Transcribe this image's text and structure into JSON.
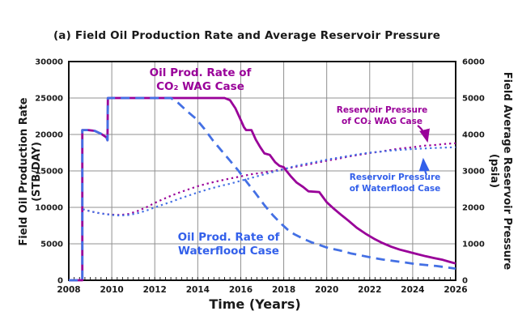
{
  "title": "(a) Field Oil Production Rate and Average Reservoir Pressure",
  "colors": {
    "wag": "#990099",
    "waterflood": "#4470E4",
    "waterflood_text": "#3360EA",
    "grid": "#909090",
    "frame": "#111111",
    "text": "#1a1a1a"
  },
  "axes": {
    "x": {
      "label": "Time (Years)",
      "min": 2008,
      "max": 2026,
      "major_ticks": [
        2008,
        2010,
        2012,
        2014,
        2016,
        2018,
        2020,
        2022,
        2024,
        2026
      ],
      "minor_step": 0.25
    },
    "y_left": {
      "label_line1": "Field Oil Production Rate",
      "label_line2": "(STB/DAY)",
      "min": 0,
      "max": 30000,
      "ticks": [
        0,
        5000,
        10000,
        15000,
        20000,
        25000,
        30000
      ]
    },
    "y_right": {
      "label_line1": "Field Average Reservoir Pressure",
      "label_line2": "(psia)",
      "min": 0,
      "max": 6000,
      "ticks": [
        0,
        1000,
        2000,
        3000,
        4000,
        5000,
        6000
      ]
    }
  },
  "annotations": {
    "prod_wag": {
      "line1": "Oil Prod. Rate of",
      "line2": "CO₂ WAG Case"
    },
    "prod_wf": {
      "line1": "Oil Prod. Rate of",
      "line2": "Waterflood Case"
    },
    "pres_wag": {
      "line1": "Reservoir Pressure",
      "line2": "of CO₂ WAG Case"
    },
    "pres_wf": {
      "line1": "Reservoir Pressure",
      "line2": "of Waterflood Case"
    }
  },
  "chart_data": {
    "type": "line",
    "title": "(a) Field Oil Production Rate and Average Reservoir Pressure",
    "xlabel": "Time (Years)",
    "ylabel_left": "Field Oil Production Rate (STB/DAY)",
    "ylabel_right": "Field Average Reservoir Pressure (psia)",
    "xlim": [
      2008,
      2026
    ],
    "ylim_left": [
      0,
      30000
    ],
    "ylim_right": [
      0,
      6000
    ],
    "grid": true,
    "series": [
      {
        "name": "Oil Prod. Rate of CO₂ WAG Case",
        "axis": "left",
        "style": "solid",
        "color": "#990099",
        "points": [
          [
            2008.0,
            0
          ],
          [
            2008.63,
            0
          ],
          [
            2008.63,
            20600
          ],
          [
            2008.9,
            20600
          ],
          [
            2009.2,
            20500
          ],
          [
            2009.5,
            20100
          ],
          [
            2009.75,
            19600
          ],
          [
            2009.8,
            19200
          ],
          [
            2009.82,
            25000
          ],
          [
            2015.25,
            25000
          ],
          [
            2015.5,
            24700
          ],
          [
            2015.75,
            23600
          ],
          [
            2016.0,
            22000
          ],
          [
            2016.15,
            21000
          ],
          [
            2016.25,
            20600
          ],
          [
            2016.5,
            20600
          ],
          [
            2016.7,
            19300
          ],
          [
            2016.9,
            18300
          ],
          [
            2017.1,
            17400
          ],
          [
            2017.35,
            17200
          ],
          [
            2017.6,
            16200
          ],
          [
            2017.8,
            15700
          ],
          [
            2018.0,
            15500
          ],
          [
            2018.1,
            15100
          ],
          [
            2018.35,
            14200
          ],
          [
            2018.6,
            13400
          ],
          [
            2018.9,
            12800
          ],
          [
            2019.15,
            12200
          ],
          [
            2019.65,
            12100
          ],
          [
            2019.8,
            11500
          ],
          [
            2020.0,
            10700
          ],
          [
            2020.3,
            9900
          ],
          [
            2020.7,
            8900
          ],
          [
            2021.0,
            8200
          ],
          [
            2021.4,
            7200
          ],
          [
            2021.8,
            6400
          ],
          [
            2022.2,
            5700
          ],
          [
            2022.6,
            5100
          ],
          [
            2023.0,
            4600
          ],
          [
            2023.4,
            4200
          ],
          [
            2023.8,
            3900
          ],
          [
            2024.2,
            3600
          ],
          [
            2024.6,
            3300
          ],
          [
            2025.0,
            3050
          ],
          [
            2025.4,
            2800
          ],
          [
            2025.7,
            2550
          ],
          [
            2026.0,
            2300
          ]
        ]
      },
      {
        "name": "Oil Prod. Rate of Waterflood Case",
        "axis": "left",
        "style": "dashed",
        "color": "#4470E4",
        "points": [
          [
            2008.0,
            0
          ],
          [
            2008.63,
            0
          ],
          [
            2008.63,
            20600
          ],
          [
            2008.9,
            20600
          ],
          [
            2009.2,
            20500
          ],
          [
            2009.5,
            20100
          ],
          [
            2009.75,
            19600
          ],
          [
            2009.8,
            19200
          ],
          [
            2009.82,
            25000
          ],
          [
            2012.75,
            25000
          ],
          [
            2013.1,
            24300
          ],
          [
            2013.5,
            23200
          ],
          [
            2013.9,
            22200
          ],
          [
            2014.3,
            20800
          ],
          [
            2014.7,
            19200
          ],
          [
            2015.1,
            17800
          ],
          [
            2015.5,
            16400
          ],
          [
            2015.9,
            15000
          ],
          [
            2016.3,
            13400
          ],
          [
            2016.7,
            11900
          ],
          [
            2017.1,
            10300
          ],
          [
            2017.5,
            8900
          ],
          [
            2017.9,
            7700
          ],
          [
            2018.2,
            6900
          ],
          [
            2018.5,
            6300
          ],
          [
            2018.9,
            5700
          ],
          [
            2019.3,
            5200
          ],
          [
            2019.7,
            4800
          ],
          [
            2020.1,
            4400
          ],
          [
            2020.6,
            4100
          ],
          [
            2021.1,
            3700
          ],
          [
            2021.6,
            3400
          ],
          [
            2022.1,
            3100
          ],
          [
            2022.6,
            2850
          ],
          [
            2023.1,
            2650
          ],
          [
            2023.6,
            2450
          ],
          [
            2024.1,
            2250
          ],
          [
            2024.6,
            2100
          ],
          [
            2025.1,
            1950
          ],
          [
            2025.5,
            1800
          ],
          [
            2026.0,
            1600
          ]
        ]
      },
      {
        "name": "Reservoir Pressure of CO₂ WAG Case",
        "axis": "right",
        "style": "dotted",
        "color": "#990099",
        "points": [
          [
            2008.65,
            1950
          ],
          [
            2009.0,
            1890
          ],
          [
            2009.5,
            1830
          ],
          [
            2010.0,
            1800
          ],
          [
            2010.4,
            1790
          ],
          [
            2010.8,
            1820
          ],
          [
            2011.2,
            1900
          ],
          [
            2011.6,
            2000
          ],
          [
            2012.0,
            2120
          ],
          [
            2012.4,
            2230
          ],
          [
            2012.8,
            2330
          ],
          [
            2013.2,
            2420
          ],
          [
            2013.6,
            2500
          ],
          [
            2014.0,
            2580
          ],
          [
            2014.5,
            2660
          ],
          [
            2015.0,
            2730
          ],
          [
            2015.5,
            2790
          ],
          [
            2016.0,
            2850
          ],
          [
            2016.5,
            2910
          ],
          [
            2017.0,
            2950
          ],
          [
            2017.5,
            3000
          ],
          [
            2018.0,
            3050
          ],
          [
            2018.5,
            3110
          ],
          [
            2019.0,
            3160
          ],
          [
            2019.5,
            3220
          ],
          [
            2020.0,
            3280
          ],
          [
            2020.5,
            3330
          ],
          [
            2021.0,
            3390
          ],
          [
            2021.5,
            3440
          ],
          [
            2022.0,
            3490
          ],
          [
            2022.5,
            3530
          ],
          [
            2023.0,
            3580
          ],
          [
            2023.5,
            3620
          ],
          [
            2024.0,
            3650
          ],
          [
            2024.5,
            3690
          ],
          [
            2025.0,
            3710
          ],
          [
            2025.5,
            3740
          ],
          [
            2026.0,
            3760
          ]
        ]
      },
      {
        "name": "Reservoir Pressure of Waterflood Case",
        "axis": "right",
        "style": "dotted",
        "color": "#4470E4",
        "points": [
          [
            2008.65,
            1950
          ],
          [
            2009.0,
            1890
          ],
          [
            2009.5,
            1830
          ],
          [
            2010.0,
            1790
          ],
          [
            2010.4,
            1775
          ],
          [
            2010.8,
            1790
          ],
          [
            2011.2,
            1840
          ],
          [
            2011.6,
            1910
          ],
          [
            2012.0,
            2000
          ],
          [
            2012.4,
            2080
          ],
          [
            2012.8,
            2160
          ],
          [
            2013.2,
            2250
          ],
          [
            2013.6,
            2330
          ],
          [
            2014.0,
            2410
          ],
          [
            2014.5,
            2500
          ],
          [
            2015.0,
            2580
          ],
          [
            2015.5,
            2650
          ],
          [
            2016.0,
            2730
          ],
          [
            2016.5,
            2810
          ],
          [
            2017.0,
            2890
          ],
          [
            2017.5,
            2970
          ],
          [
            2018.0,
            3050
          ],
          [
            2018.5,
            3130
          ],
          [
            2019.0,
            3190
          ],
          [
            2019.5,
            3250
          ],
          [
            2020.0,
            3310
          ],
          [
            2020.5,
            3360
          ],
          [
            2021.0,
            3410
          ],
          [
            2021.5,
            3460
          ],
          [
            2022.0,
            3500
          ],
          [
            2022.5,
            3530
          ],
          [
            2023.0,
            3560
          ],
          [
            2023.5,
            3580
          ],
          [
            2024.0,
            3600
          ],
          [
            2024.5,
            3615
          ],
          [
            2025.0,
            3630
          ],
          [
            2025.5,
            3640
          ],
          [
            2026.0,
            3650
          ]
        ]
      }
    ]
  }
}
